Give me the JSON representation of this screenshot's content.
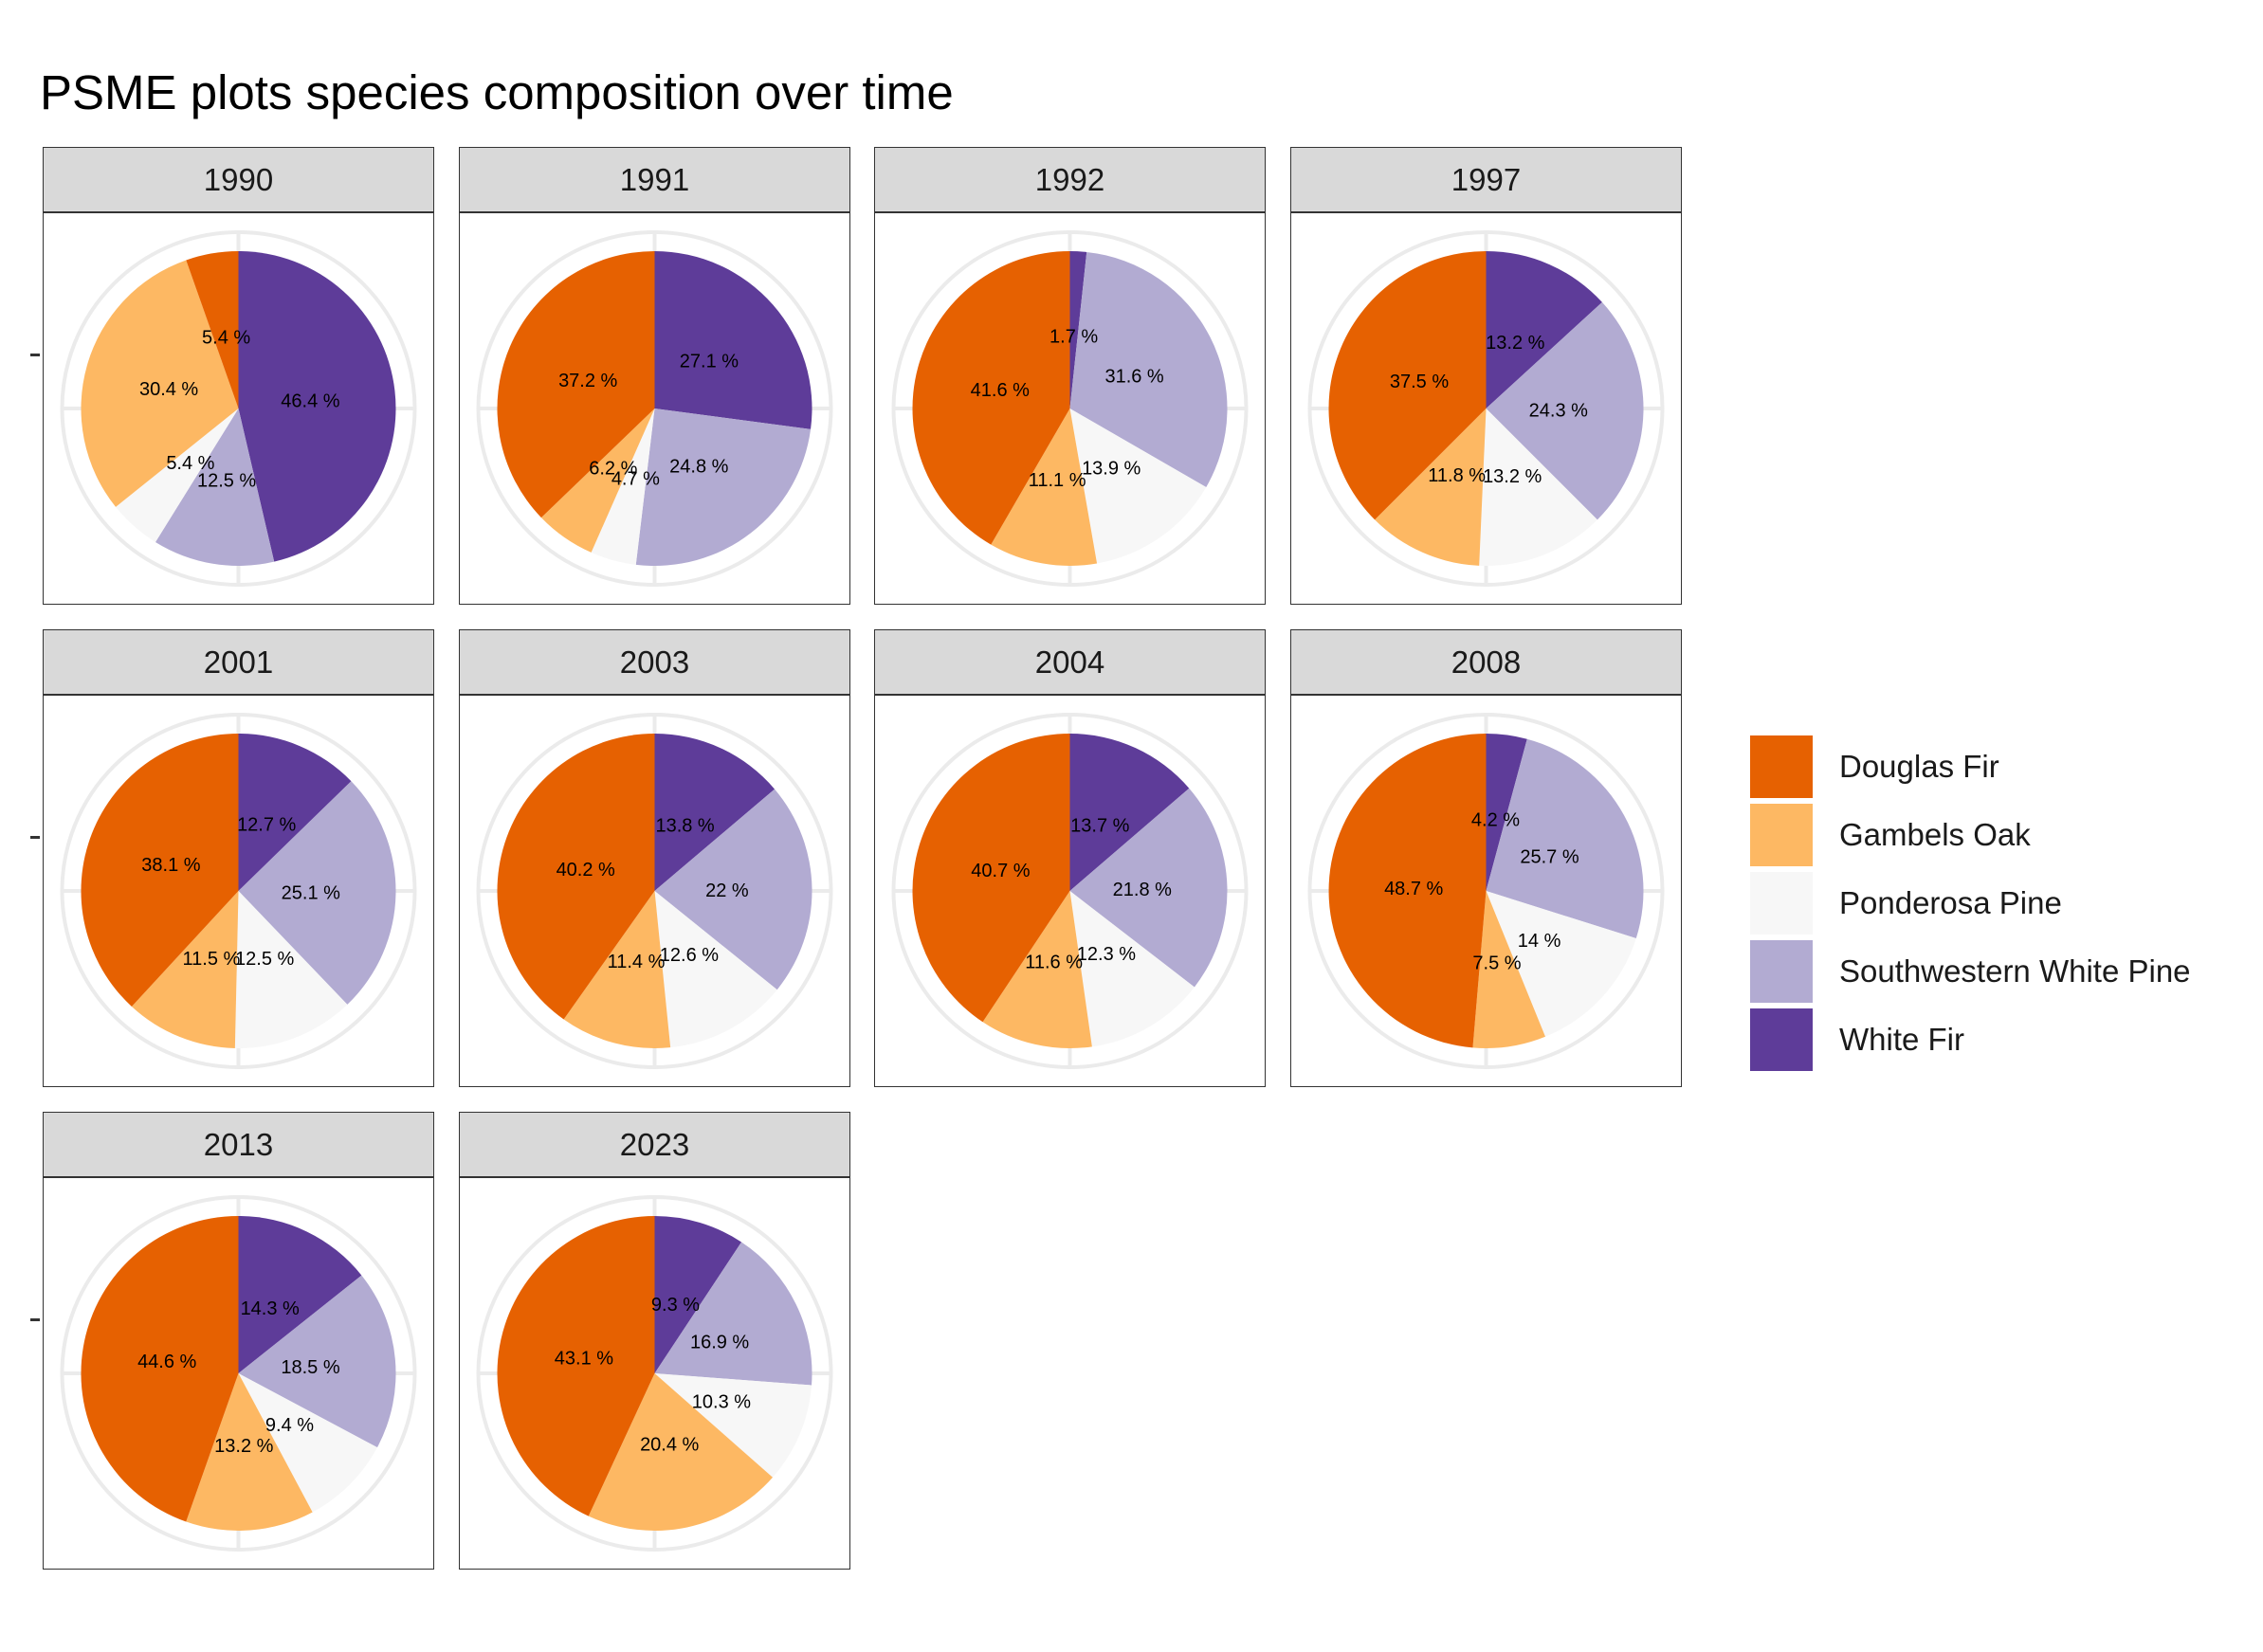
{
  "title": "PSME plots species composition over time",
  "colors": {
    "Douglas Fir": "#e66101",
    "Gambels Oak": "#fdb863",
    "Ponderosa Pine": "#f7f7f7",
    "Southwestern White Pine": "#b2abd2",
    "White Fir": "#5e3c99"
  },
  "legend": {
    "items": [
      {
        "label": "Douglas Fir",
        "color": "#e66101"
      },
      {
        "label": "Gambels Oak",
        "color": "#fdb863"
      },
      {
        "label": "Ponderosa Pine",
        "color": "#f7f7f7"
      },
      {
        "label": "Southwestern White Pine",
        "color": "#b2abd2"
      },
      {
        "label": "White Fir",
        "color": "#5e3c99"
      }
    ]
  },
  "chart_data": [
    {
      "type": "pie",
      "title": "1990",
      "slices": [
        {
          "label": "White Fir",
          "value": 46.4,
          "text": "46.4 %"
        },
        {
          "label": "Southwestern White Pine",
          "value": 12.5,
          "text": "12.5 %"
        },
        {
          "label": "Ponderosa Pine",
          "value": 5.4,
          "text": "5.4 %"
        },
        {
          "label": "Gambels Oak",
          "value": 30.4,
          "text": "30.4 %"
        },
        {
          "label": "Douglas Fir",
          "value": 5.4,
          "text": "5.4 %"
        }
      ]
    },
    {
      "type": "pie",
      "title": "1991",
      "slices": [
        {
          "label": "White Fir",
          "value": 27.1,
          "text": "27.1 %"
        },
        {
          "label": "Southwestern White Pine",
          "value": 24.8,
          "text": "24.8 %"
        },
        {
          "label": "Ponderosa Pine",
          "value": 4.7,
          "text": "4.7 %"
        },
        {
          "label": "Gambels Oak",
          "value": 6.2,
          "text": "6.2 %"
        },
        {
          "label": "Douglas Fir",
          "value": 37.2,
          "text": "37.2 %"
        }
      ]
    },
    {
      "type": "pie",
      "title": "1992",
      "slices": [
        {
          "label": "White Fir",
          "value": 1.7,
          "text": "1.7 %"
        },
        {
          "label": "Southwestern White Pine",
          "value": 31.6,
          "text": "31.6 %"
        },
        {
          "label": "Ponderosa Pine",
          "value": 13.9,
          "text": "13.9 %"
        },
        {
          "label": "Gambels Oak",
          "value": 11.1,
          "text": "11.1 %"
        },
        {
          "label": "Douglas Fir",
          "value": 41.6,
          "text": "41.6 %"
        }
      ]
    },
    {
      "type": "pie",
      "title": "1997",
      "slices": [
        {
          "label": "White Fir",
          "value": 13.2,
          "text": "13.2 %"
        },
        {
          "label": "Southwestern White Pine",
          "value": 24.3,
          "text": "24.3 %"
        },
        {
          "label": "Ponderosa Pine",
          "value": 13.2,
          "text": "13.2 %"
        },
        {
          "label": "Gambels Oak",
          "value": 11.8,
          "text": "11.8 %"
        },
        {
          "label": "Douglas Fir",
          "value": 37.5,
          "text": "37.5 %"
        }
      ]
    },
    {
      "type": "pie",
      "title": "2001",
      "slices": [
        {
          "label": "White Fir",
          "value": 12.7,
          "text": "12.7 %"
        },
        {
          "label": "Southwestern White Pine",
          "value": 25.1,
          "text": "25.1 %"
        },
        {
          "label": "Ponderosa Pine",
          "value": 12.5,
          "text": "12.5 %"
        },
        {
          "label": "Gambels Oak",
          "value": 11.5,
          "text": "11.5 %"
        },
        {
          "label": "Douglas Fir",
          "value": 38.1,
          "text": "38.1 %"
        }
      ]
    },
    {
      "type": "pie",
      "title": "2003",
      "slices": [
        {
          "label": "White Fir",
          "value": 13.8,
          "text": "13.8 %"
        },
        {
          "label": "Southwestern White Pine",
          "value": 22,
          "text": "22 %"
        },
        {
          "label": "Ponderosa Pine",
          "value": 12.6,
          "text": "12.6 %"
        },
        {
          "label": "Gambels Oak",
          "value": 11.4,
          "text": "11.4 %"
        },
        {
          "label": "Douglas Fir",
          "value": 40.2,
          "text": "40.2 %"
        }
      ]
    },
    {
      "type": "pie",
      "title": "2004",
      "slices": [
        {
          "label": "White Fir",
          "value": 13.7,
          "text": "13.7 %"
        },
        {
          "label": "Southwestern White Pine",
          "value": 21.8,
          "text": "21.8 %"
        },
        {
          "label": "Ponderosa Pine",
          "value": 12.3,
          "text": "12.3 %"
        },
        {
          "label": "Gambels Oak",
          "value": 11.6,
          "text": "11.6 %"
        },
        {
          "label": "Douglas Fir",
          "value": 40.7,
          "text": "40.7 %"
        }
      ]
    },
    {
      "type": "pie",
      "title": "2008",
      "slices": [
        {
          "label": "White Fir",
          "value": 4.2,
          "text": "4.2 %"
        },
        {
          "label": "Southwestern White Pine",
          "value": 25.7,
          "text": "25.7 %"
        },
        {
          "label": "Ponderosa Pine",
          "value": 14,
          "text": "14 %"
        },
        {
          "label": "Gambels Oak",
          "value": 7.5,
          "text": "7.5 %"
        },
        {
          "label": "Douglas Fir",
          "value": 48.7,
          "text": "48.7 %"
        }
      ]
    },
    {
      "type": "pie",
      "title": "2013",
      "slices": [
        {
          "label": "White Fir",
          "value": 14.3,
          "text": "14.3 %"
        },
        {
          "label": "Southwestern White Pine",
          "value": 18.5,
          "text": "18.5 %"
        },
        {
          "label": "Ponderosa Pine",
          "value": 9.4,
          "text": "9.4 %"
        },
        {
          "label": "Gambels Oak",
          "value": 13.2,
          "text": "13.2 %"
        },
        {
          "label": "Douglas Fir",
          "value": 44.6,
          "text": "44.6 %"
        }
      ]
    },
    {
      "type": "pie",
      "title": "2023",
      "slices": [
        {
          "label": "White Fir",
          "value": 9.3,
          "text": "9.3 %"
        },
        {
          "label": "Southwestern White Pine",
          "value": 16.9,
          "text": "16.9 %"
        },
        {
          "label": "Ponderosa Pine",
          "value": 10.3,
          "text": "10.3 %"
        },
        {
          "label": "Gambels Oak",
          "value": 20.4,
          "text": "20.4 %"
        },
        {
          "label": "Douglas Fir",
          "value": 43.1,
          "text": "43.1 %"
        }
      ]
    }
  ]
}
